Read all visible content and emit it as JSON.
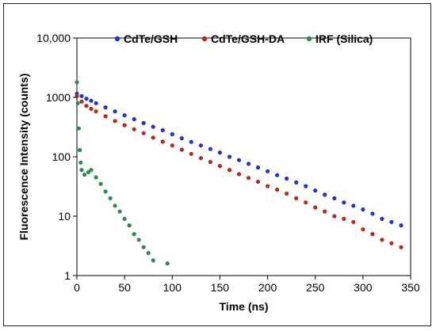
{
  "chart_data": {
    "type": "scatter",
    "title": "",
    "xlabel": "Time (ns)",
    "ylabel": "Fluorescence Intensity (counts)",
    "xlim": [
      0,
      350
    ],
    "ylim": [
      1,
      10000
    ],
    "y_scale": "log",
    "x_ticks": [
      0,
      50,
      100,
      150,
      200,
      250,
      300,
      350
    ],
    "y_ticks": [
      1,
      10,
      100,
      1000,
      10000
    ],
    "x_tick_labels": [
      "0",
      "50",
      "100",
      "150",
      "200",
      "250",
      "300",
      "350"
    ],
    "y_tick_labels": [
      "1",
      "10",
      "100",
      "1000",
      "10,000"
    ],
    "grid": false,
    "legend_position": "top",
    "series": [
      {
        "name": "CdTe/GSH",
        "color": "#2233cc",
        "points": [
          [
            0,
            1150
          ],
          [
            5,
            1050
          ],
          [
            10,
            950
          ],
          [
            15,
            880
          ],
          [
            20,
            800
          ],
          [
            30,
            680
          ],
          [
            40,
            580
          ],
          [
            50,
            500
          ],
          [
            60,
            430
          ],
          [
            70,
            370
          ],
          [
            80,
            320
          ],
          [
            90,
            280
          ],
          [
            100,
            240
          ],
          [
            110,
            205
          ],
          [
            120,
            178
          ],
          [
            130,
            155
          ],
          [
            140,
            135
          ],
          [
            150,
            118
          ],
          [
            160,
            100
          ],
          [
            170,
            88
          ],
          [
            180,
            76
          ],
          [
            190,
            66
          ],
          [
            200,
            57
          ],
          [
            210,
            49
          ],
          [
            220,
            43
          ],
          [
            230,
            37
          ],
          [
            240,
            32
          ],
          [
            250,
            27
          ],
          [
            260,
            23
          ],
          [
            270,
            20
          ],
          [
            280,
            17
          ],
          [
            290,
            15
          ],
          [
            300,
            13
          ],
          [
            310,
            11
          ],
          [
            320,
            9
          ],
          [
            330,
            8
          ],
          [
            340,
            7
          ]
        ]
      },
      {
        "name": "CdTe/GSH-DA",
        "color": "#b52a1a",
        "points": [
          [
            0,
            1050
          ],
          [
            5,
            850
          ],
          [
            10,
            720
          ],
          [
            15,
            640
          ],
          [
            20,
            580
          ],
          [
            30,
            480
          ],
          [
            40,
            400
          ],
          [
            50,
            340
          ],
          [
            60,
            290
          ],
          [
            70,
            250
          ],
          [
            80,
            210
          ],
          [
            90,
            180
          ],
          [
            100,
            155
          ],
          [
            110,
            132
          ],
          [
            120,
            112
          ],
          [
            130,
            95
          ],
          [
            140,
            82
          ],
          [
            150,
            70
          ],
          [
            160,
            60
          ],
          [
            170,
            51
          ],
          [
            180,
            44
          ],
          [
            190,
            38
          ],
          [
            200,
            32
          ],
          [
            210,
            28
          ],
          [
            220,
            24
          ],
          [
            230,
            20
          ],
          [
            240,
            17
          ],
          [
            250,
            14
          ],
          [
            260,
            12
          ],
          [
            270,
            10
          ],
          [
            280,
            9
          ],
          [
            290,
            8
          ],
          [
            300,
            6
          ],
          [
            310,
            5
          ],
          [
            320,
            4
          ],
          [
            330,
            3.5
          ],
          [
            340,
            3
          ]
        ]
      },
      {
        "name": "IRF (Silica)",
        "color": "#2e8a4e",
        "points": [
          [
            0,
            1800
          ],
          [
            1,
            800
          ],
          [
            2,
            300
          ],
          [
            3,
            130
          ],
          [
            4,
            80
          ],
          [
            5,
            60
          ],
          [
            8,
            50
          ],
          [
            12,
            55
          ],
          [
            15,
            60
          ],
          [
            20,
            45
          ],
          [
            25,
            35
          ],
          [
            30,
            26
          ],
          [
            35,
            20
          ],
          [
            40,
            15
          ],
          [
            45,
            12
          ],
          [
            50,
            9
          ],
          [
            55,
            7
          ],
          [
            60,
            5
          ],
          [
            65,
            4
          ],
          [
            70,
            3
          ],
          [
            75,
            2.4
          ],
          [
            80,
            1.8
          ],
          [
            95,
            1.6
          ]
        ]
      }
    ]
  }
}
